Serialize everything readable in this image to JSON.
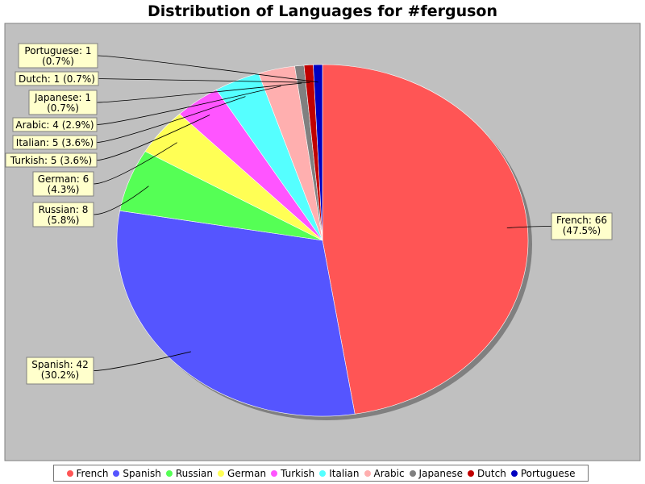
{
  "chart_data": {
    "type": "pie",
    "title": "Distribution of Languages for #ferguson",
    "slices": [
      {
        "name": "French",
        "value": 66,
        "label_line1": "French: 66",
        "label_line2": "(47.5%)",
        "color": "#ff5555"
      },
      {
        "name": "Spanish",
        "value": 42,
        "label_line1": "Spanish: 42",
        "label_line2": "(30.2%)",
        "color": "#5555ff"
      },
      {
        "name": "Russian",
        "value": 8,
        "label_line1": "Russian: 8",
        "label_line2": "(5.8%)",
        "color": "#55ff55"
      },
      {
        "name": "German",
        "value": 6,
        "label_line1": "German: 6",
        "label_line2": "(4.3%)",
        "color": "#ffff55"
      },
      {
        "name": "Turkish",
        "value": 5,
        "label_line1": "Turkish: 5 (3.6%)",
        "label_line2": "",
        "color": "#ff55ff"
      },
      {
        "name": "Italian",
        "value": 5,
        "label_line1": "Italian: 5 (3.6%)",
        "label_line2": "",
        "color": "#55ffff"
      },
      {
        "name": "Arabic",
        "value": 4,
        "label_line1": "Arabic: 4 (2.9%)",
        "label_line2": "",
        "color": "#ffafaf"
      },
      {
        "name": "Japanese",
        "value": 1,
        "label_line1": "Japanese: 1",
        "label_line2": "(0.7%)",
        "color": "#808080"
      },
      {
        "name": "Dutch",
        "value": 1,
        "label_line1": "Dutch: 1 (0.7%)",
        "label_line2": "",
        "color": "#c00000"
      },
      {
        "name": "Portuguese",
        "value": 1,
        "label_line1": "Portuguese: 1",
        "label_line2": "(0.7%)",
        "color": "#0000c0"
      }
    ],
    "legend_position": "bottom",
    "plot_background": "#c0c0c0"
  }
}
